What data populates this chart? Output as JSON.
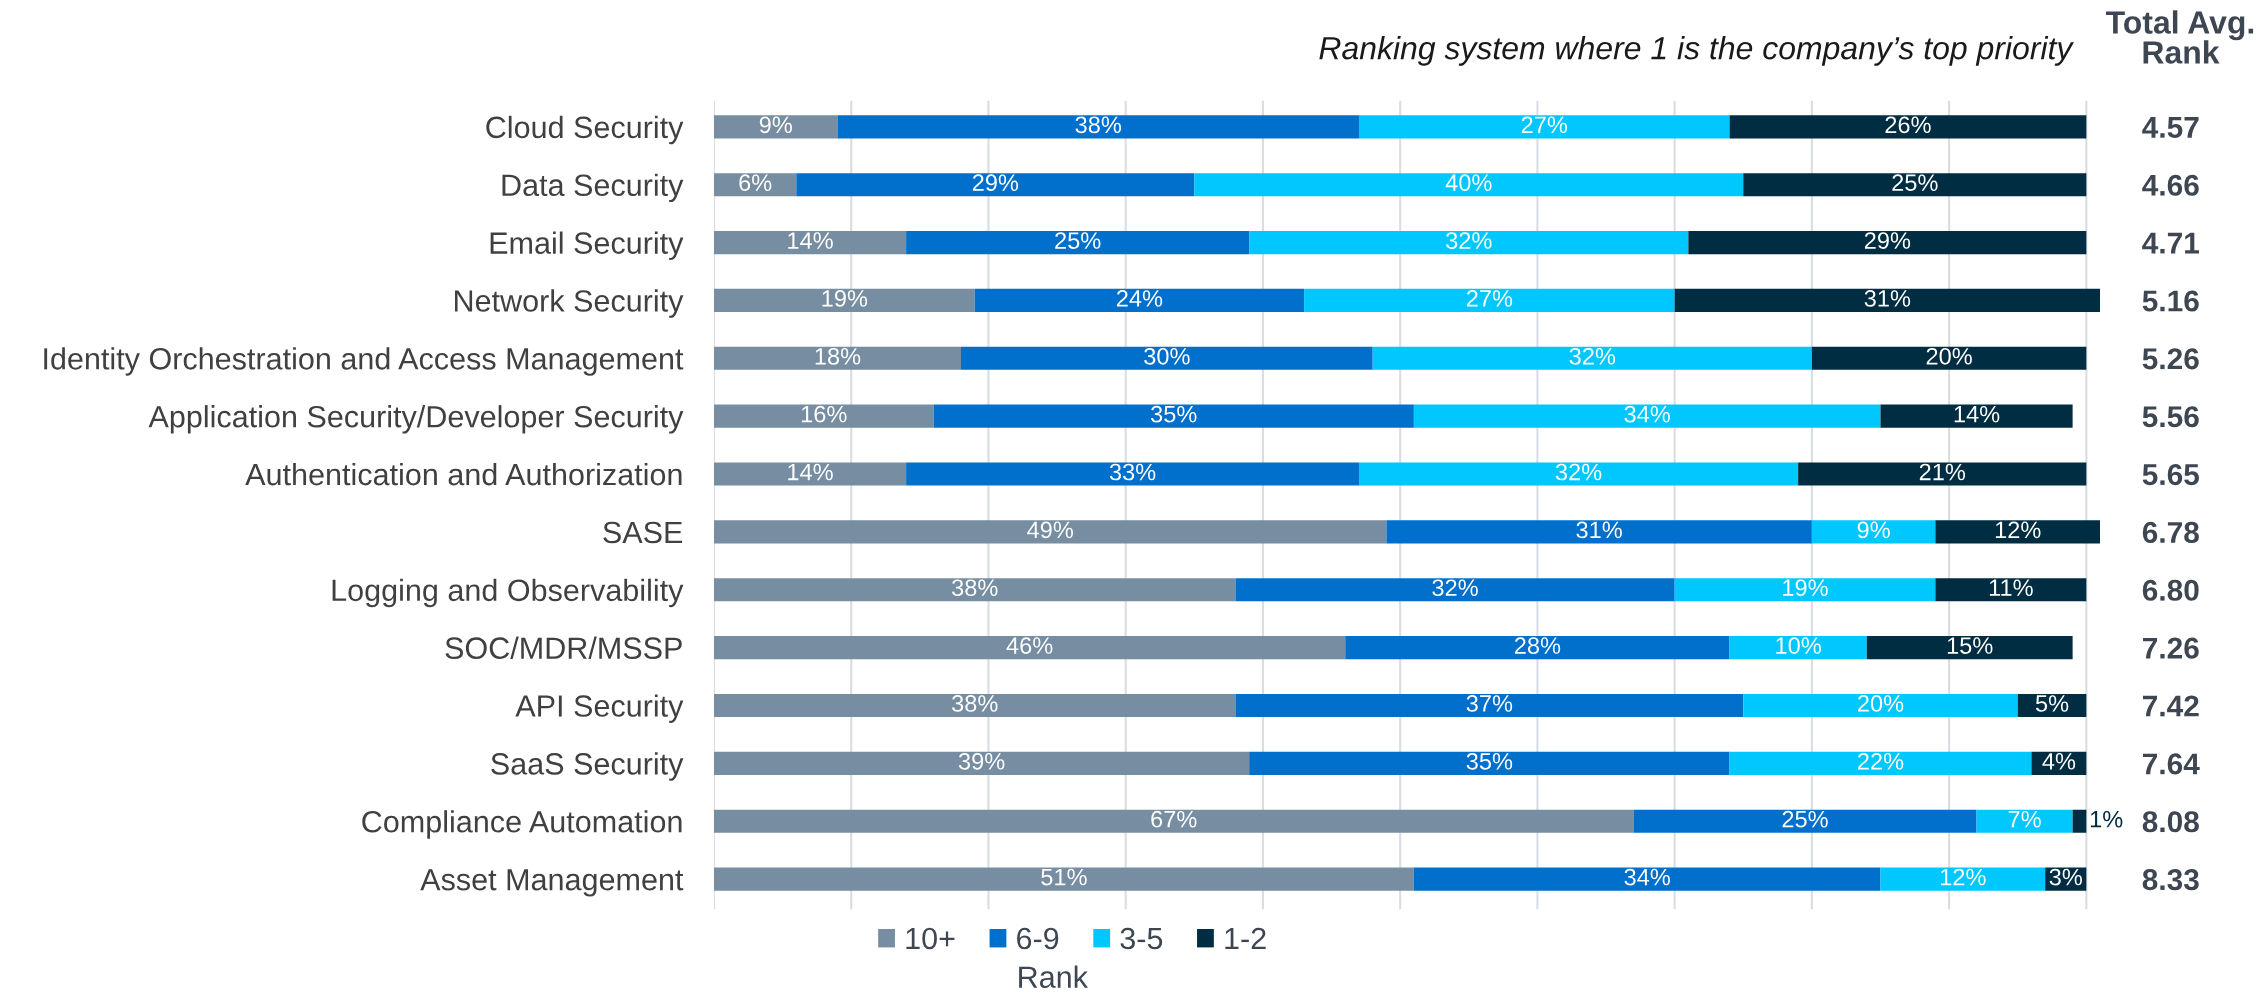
{
  "chart_data": {
    "type": "bar",
    "orientation": "horizontal",
    "stacked": true,
    "title": "Ranking system where 1 is the company’s top priority",
    "categories": [
      "Cloud Security",
      "Data Security",
      "Email Security",
      "Network Security",
      "Identity Orchestration and Access Management",
      "Application Security/Developer Security",
      "Authentication and Authorization",
      "SASE",
      "Logging and Observability",
      "SOC/MDR/MSSP",
      "API Security",
      "SaaS Security",
      "Compliance Automation",
      "Asset Management"
    ],
    "series": [
      {
        "name": "10+",
        "color": "#778da1",
        "values": [
          9,
          6,
          14,
          19,
          18,
          16,
          14,
          49,
          38,
          46,
          38,
          39,
          67,
          51
        ],
        "value_labels": [
          "9%",
          "6%",
          "14%",
          "19%",
          "18%",
          "16%",
          "14%",
          "49%",
          "38%",
          "46%",
          "38%",
          "39%",
          "67%",
          "51%"
        ]
      },
      {
        "name": "6-9",
        "color": "#0070cc",
        "values": [
          38,
          29,
          25,
          24,
          30,
          35,
          33,
          31,
          32,
          28,
          37,
          35,
          25,
          34
        ],
        "value_labels": [
          "38%",
          "29%",
          "25%",
          "24%",
          "30%",
          "35%",
          "33%",
          "31%",
          "32%",
          "28%",
          "37%",
          "35%",
          "25%",
          "34%"
        ]
      },
      {
        "name": "3-5",
        "color": "#00c8ff",
        "values": [
          27,
          40,
          32,
          27,
          32,
          34,
          32,
          9,
          19,
          10,
          20,
          22,
          7,
          12
        ],
        "value_labels": [
          "27%",
          "40%",
          "32%",
          "27%",
          "32%",
          "34%",
          "32%",
          "9%",
          "19%",
          "10%",
          "20%",
          "22%",
          "7%",
          "12%"
        ]
      },
      {
        "name": "1-2",
        "color": "#002d42",
        "values": [
          26,
          25,
          29,
          31,
          20,
          14,
          21,
          12,
          11,
          15,
          5,
          4,
          1,
          3
        ],
        "value_labels": [
          "26%",
          "25%",
          "29%",
          "31%",
          "20%",
          "14%",
          "21%",
          "12%",
          "11%",
          "15%",
          "5%",
          "4%",
          "1%",
          "3%"
        ]
      }
    ],
    "xlim": [
      0,
      101
    ],
    "xticks": [
      {
        "value": 0,
        "label": null
      },
      {
        "value": 10,
        "label": null
      },
      {
        "value": 20,
        "label": null
      },
      {
        "value": 30,
        "label": null
      },
      {
        "value": 40,
        "label": null
      },
      {
        "value": 50,
        "label": null
      },
      {
        "value": 60,
        "label": null
      },
      {
        "value": 70,
        "label": null
      },
      {
        "value": 80,
        "label": null
      },
      {
        "value": 90,
        "label": null
      },
      {
        "value": 100,
        "label": null
      }
    ],
    "grid": "x",
    "tick_labels": "y",
    "legend": "bottom",
    "legend_title": "Rank",
    "y2label": "Total Avg.\nRank",
    "y2_categories": [
      "4.57",
      "4.66",
      "4.71",
      "5.16",
      "5.26",
      "5.56",
      "5.65",
      "6.78",
      "6.80",
      "7.26",
      "7.42",
      "7.64",
      "8.08",
      "8.33"
    ]
  }
}
